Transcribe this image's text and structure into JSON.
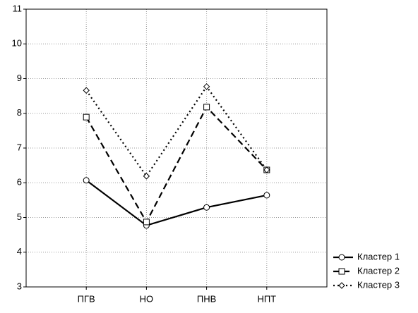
{
  "chart_data": {
    "type": "line",
    "categories": [
      "ПГВ",
      "НО",
      "ПНВ",
      "НПТ"
    ],
    "series": [
      {
        "name": "Кластер 1",
        "color": "#000000",
        "line_style": "solid",
        "marker": "circle",
        "values": [
          6.07,
          4.77,
          5.29,
          5.64
        ]
      },
      {
        "name": "Кластер 2",
        "color": "#000000",
        "line_style": "dashed",
        "marker": "square",
        "values": [
          7.89,
          4.87,
          8.18,
          6.37
        ]
      },
      {
        "name": "Кластер 3",
        "color": "#000000",
        "line_style": "dotted",
        "marker": "diamond",
        "values": [
          8.66,
          6.19,
          8.77,
          6.37
        ]
      }
    ],
    "ylim": [
      3,
      11
    ],
    "yticks": [
      3,
      4,
      5,
      6,
      7,
      8,
      9,
      10,
      11
    ],
    "grid": true,
    "legend": "lower right"
  }
}
